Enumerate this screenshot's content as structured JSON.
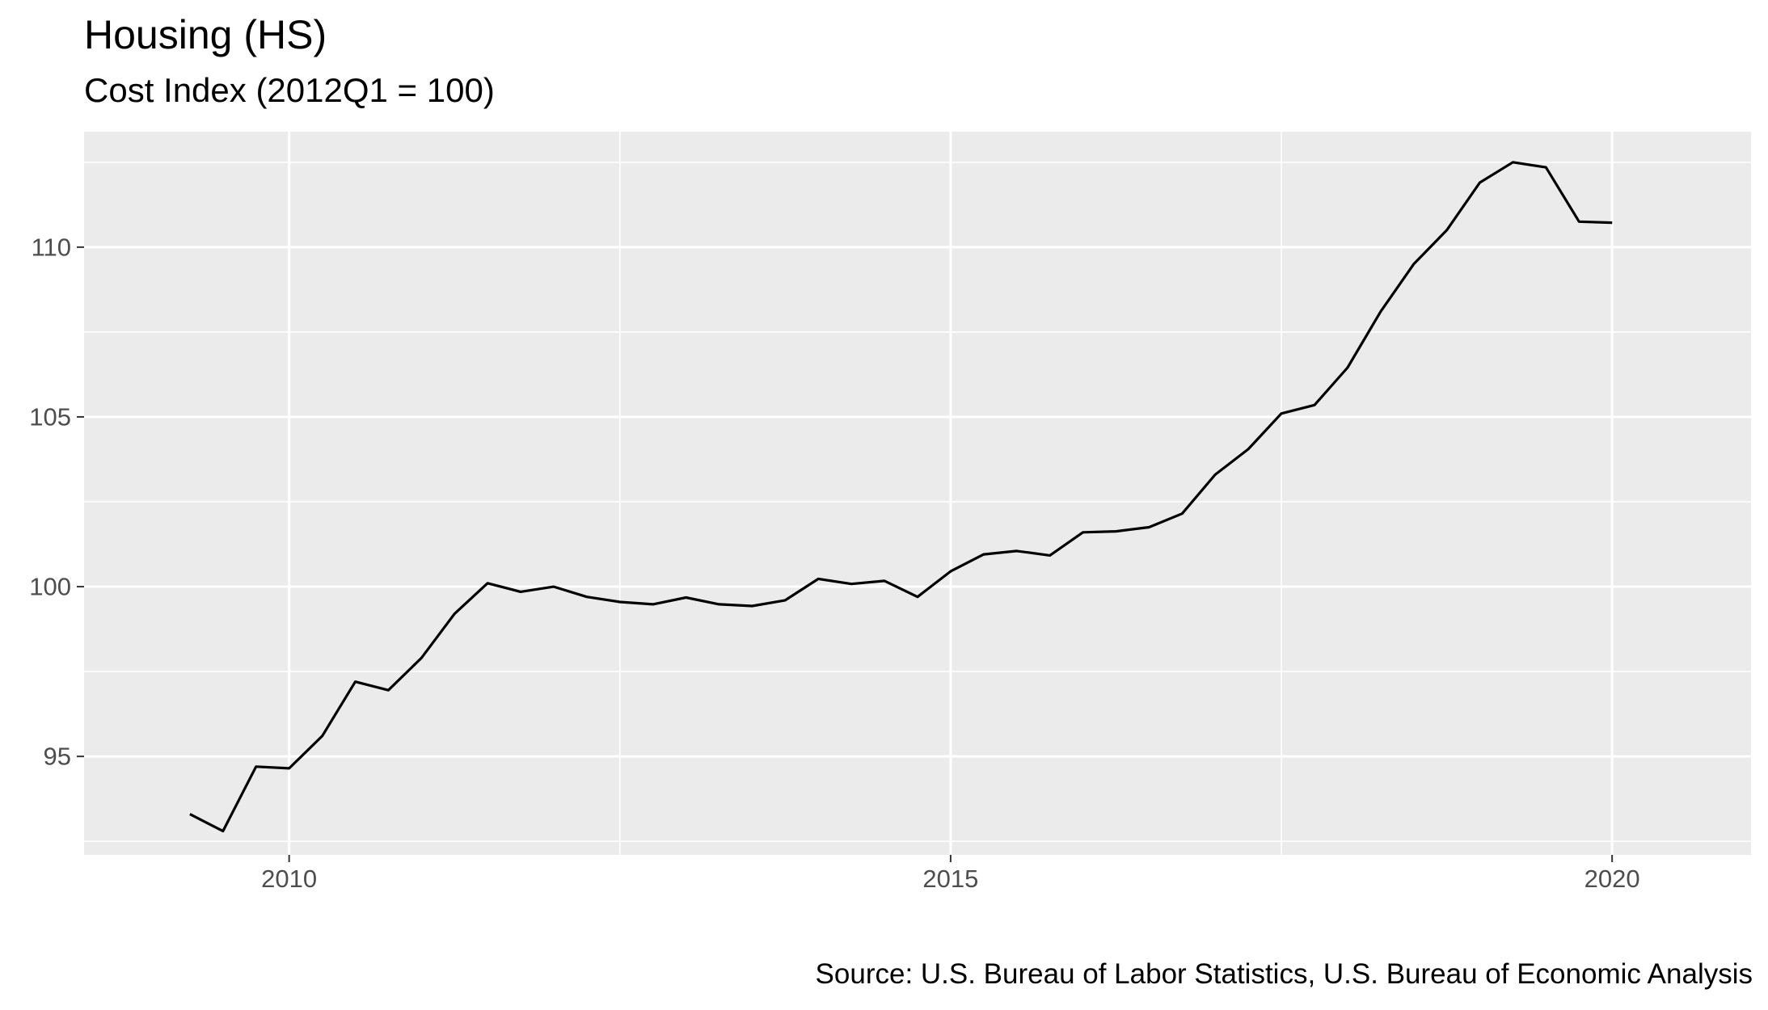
{
  "chart_data": {
    "type": "line",
    "title": "Housing (HS)",
    "subtitle": "Cost Index (2012Q1 = 100)",
    "caption": "Source: U.S. Bureau of Labor Statistics, U.S. Bureau of Economic Analysis",
    "xlabel": "",
    "ylabel": "",
    "xlim": [
      2008.45,
      2021.05
    ],
    "ylim": [
      92.1,
      113.4
    ],
    "x_ticks": [
      2010,
      2015,
      2020
    ],
    "x_tick_labels": [
      "2010",
      "2015",
      "2020"
    ],
    "x_minor_ticks": [
      2012.5,
      2017.5
    ],
    "y_ticks": [
      95,
      100,
      105,
      110
    ],
    "y_tick_labels": [
      "95",
      "100",
      "105",
      "110"
    ],
    "y_minor_ticks": [
      92.5,
      97.5,
      102.5,
      107.5,
      112.5
    ],
    "grid": true,
    "legend": "none",
    "colors": {
      "panel_background": "#ebebeb",
      "grid": "#ffffff",
      "line": "#000000",
      "tick_label": "#4d4d4d"
    },
    "series": [
      {
        "x": [
          2009.25,
          2009.5,
          2009.75,
          2010.0,
          2010.25,
          2010.5,
          2010.75,
          2011.0,
          2011.25,
          2011.5,
          2011.75,
          2012.0,
          2012.25,
          2012.5,
          2012.75,
          2013.0,
          2013.25,
          2013.5,
          2013.75,
          2014.0,
          2014.25,
          2014.5,
          2014.75,
          2015.0,
          2015.25,
          2015.5,
          2015.75,
          2016.0,
          2016.25,
          2016.5,
          2016.75,
          2017.0,
          2017.25,
          2017.5,
          2017.75,
          2018.0,
          2018.25,
          2018.5,
          2018.75,
          2019.0,
          2019.25,
          2019.5,
          2019.75,
          2020.0
        ],
        "y": [
          93.3,
          92.8,
          94.7,
          94.65,
          95.6,
          97.2,
          96.95,
          97.9,
          99.2,
          100.1,
          99.85,
          100.0,
          99.7,
          99.55,
          99.48,
          99.68,
          99.48,
          99.43,
          99.6,
          100.23,
          100.08,
          100.17,
          99.7,
          100.45,
          100.95,
          101.05,
          100.92,
          101.6,
          101.63,
          101.75,
          102.15,
          103.3,
          104.05,
          105.1,
          105.35,
          106.45,
          108.1,
          109.5,
          110.5,
          111.9,
          112.5,
          112.35,
          110.75,
          110.72
        ]
      }
    ]
  }
}
